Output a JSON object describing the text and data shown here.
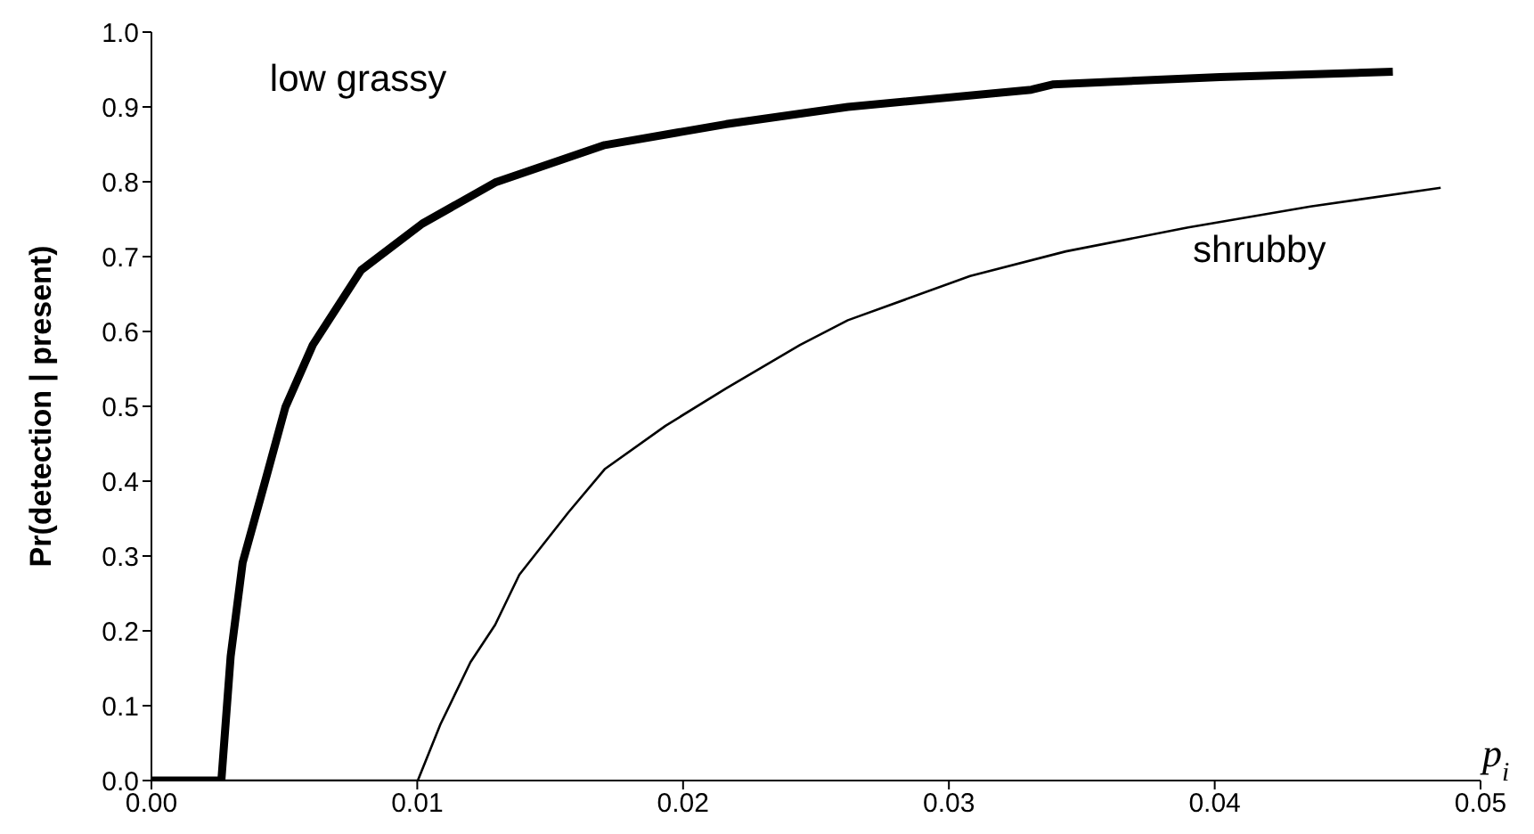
{
  "chart_data": {
    "type": "line",
    "xlabel": "p$_{i}$",
    "ylabel": "Pr(detection | present)",
    "xlim": [
      0,
      0.05
    ],
    "ylim": [
      0,
      1
    ],
    "xticks": [
      {
        "value": 0,
        "label": "0.00"
      },
      {
        "value": 0.01,
        "label": "0.01"
      },
      {
        "value": 0.02,
        "label": "0.02"
      },
      {
        "value": 0.03,
        "label": "0.03"
      },
      {
        "value": 0.04,
        "label": "0.04"
      },
      {
        "value": 0.05,
        "label": "0.05"
      }
    ],
    "yticks": [
      {
        "value": 0,
        "label": "0.0"
      },
      0.1,
      0.2,
      0.3,
      0.4,
      0.5,
      0.6,
      0.7,
      0.8,
      0.9,
      {
        "value": 1,
        "label": "1.0"
      }
    ],
    "series": [
      {
        "name": "low grassy",
        "color": "#000000",
        "x": [
          0,
          0.0024,
          0.00263,
          0.00298,
          0.00343,
          0.00424,
          0.00504,
          0.00607,
          0.00789,
          0.01019,
          0.01293,
          0.01705,
          0.02162,
          0.0262,
          0.0331,
          0.0339,
          0.0402,
          0.0467
        ],
        "values": [
          0,
          0,
          0,
          0.166,
          0.291,
          0.395,
          0.499,
          0.582,
          0.682,
          0.744,
          0.799,
          0.849,
          0.877,
          0.9,
          0.923,
          0.93,
          0.94,
          0.947
        ]
      },
      {
        "name": "shrubby",
        "color": "#000000",
        "x": [
          0,
          0.01002,
          0.01087,
          0.012,
          0.01293,
          0.01384,
          0.01568,
          0.01705,
          0.01934,
          0.02162,
          0.0244,
          0.0262,
          0.0308,
          0.0344,
          0.039,
          0.0436,
          0.0485
        ],
        "values": [
          0,
          0,
          0.075,
          0.158,
          0.208,
          0.275,
          0.358,
          0.416,
          0.474,
          0.524,
          0.582,
          0.615,
          0.674,
          0.707,
          0.739,
          0.767,
          0.792
        ]
      }
    ]
  }
}
